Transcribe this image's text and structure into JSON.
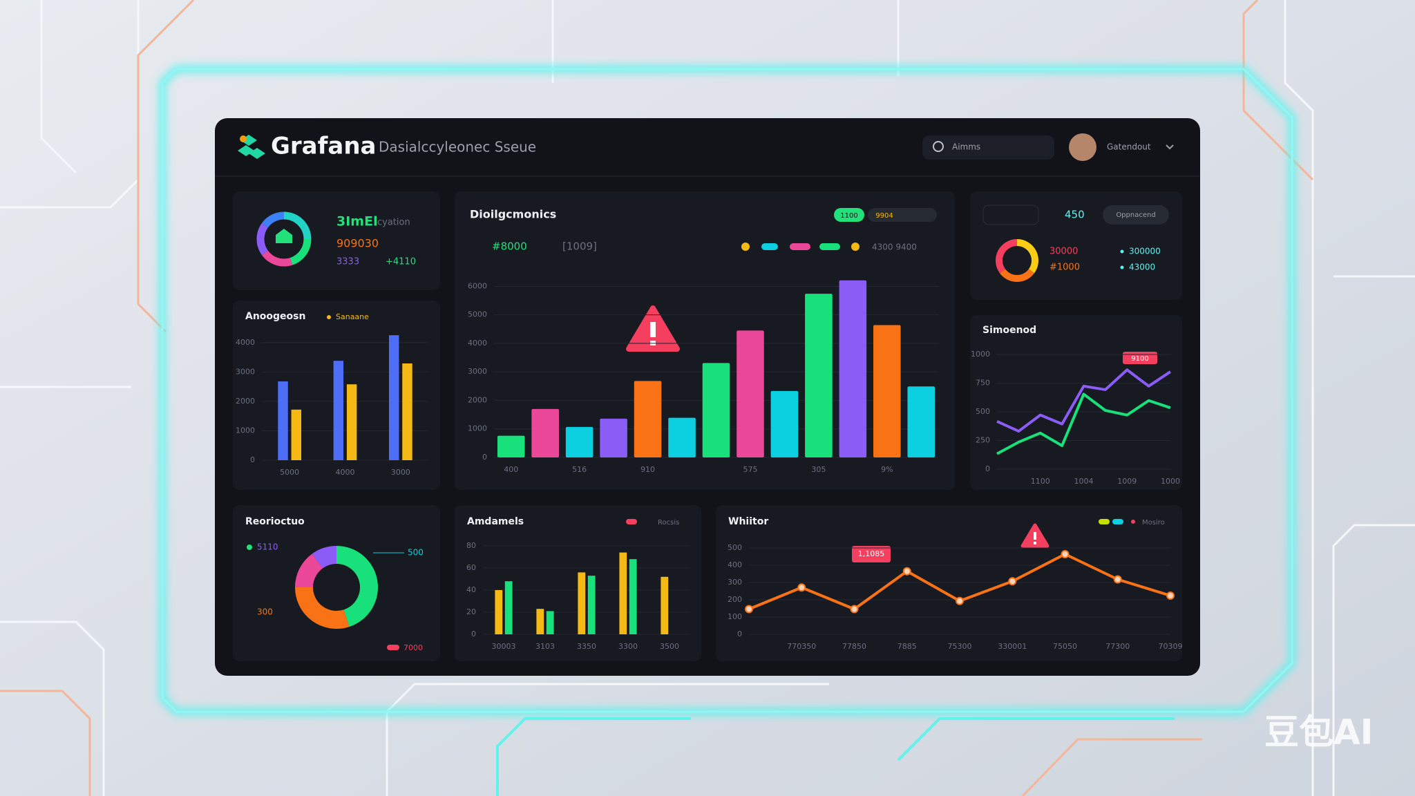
{
  "header": {
    "brand": "Grafana",
    "subtitle": "Dasialccyleonec Sseue",
    "search": "Aimms",
    "user": "Gatendout"
  },
  "watermark": "豆包AI",
  "panels": [
    {
      "title": "3ImEl",
      "subtitle": "cyation",
      "value": "909030",
      "foot": "3333",
      "delta": "+4110",
      "chart": {
        "type": "donut",
        "values": [
          25,
          20,
          20,
          20,
          15
        ],
        "colors": [
          "#22d3c5",
          "#18e07a",
          "#ec4899",
          "#8b5cf6",
          "#3b82f6"
        ]
      }
    },
    {
      "title": "Anoogeosn",
      "legend": "Sanaane",
      "chart": {
        "type": "bar",
        "categories": [
          "5000",
          "4000",
          "3000"
        ],
        "series": [
          {
            "color": "#4f6ef7",
            "values": [
              2680,
              3380,
              4250
            ]
          },
          {
            "color": "#f5b916",
            "values": [
              1720,
              2580,
              3290
            ]
          }
        ],
        "ylim": [
          0,
          4300
        ],
        "yticks": [
          0,
          1000,
          2000,
          3000,
          4000
        ]
      }
    },
    {
      "title": "Dioilgcmonics",
      "stats": [
        "#8000",
        "[1009]"
      ],
      "chips": [
        "1100",
        "9904"
      ],
      "legend": "4300  9400",
      "chart": {
        "type": "bar",
        "categories": [
          "400",
          null,
          "516",
          null,
          "910",
          null,
          null,
          "575",
          null,
          "305",
          null,
          "9%",
          null
        ],
        "values": [
          760,
          1700,
          1070,
          1360,
          2680,
          1390,
          3310,
          4450,
          2330,
          5740,
          6210,
          4640,
          2490
        ],
        "colors": [
          "#18e07a",
          "#ec4899",
          "#0ccfe0",
          "#8b5cf6",
          "#f97316",
          "#0ccfe0",
          "#18e07a",
          "#ec4899",
          "#0ccfe0",
          "#18e07a",
          "#8b5cf6",
          "#f97316",
          "#0ccfe0"
        ],
        "ylim": [
          0,
          6300
        ],
        "yticks": [
          0,
          1000,
          2000,
          3000,
          4000,
          5000,
          6000
        ]
      }
    },
    {
      "badge": "450",
      "chip": "Oppnacend",
      "lines": [
        "30000",
        "#1000"
      ],
      "legend": [
        "300000",
        "43000"
      ],
      "chart": {
        "type": "donut",
        "values": [
          35,
          30,
          35
        ],
        "colors": [
          "#facc15",
          "#f97316",
          "#f43f5e"
        ]
      }
    },
    {
      "title": "Simoenod",
      "annotation": "9100",
      "chart": {
        "type": "line",
        "categories": [
          null,
          null,
          "1100",
          null,
          "1004",
          null,
          "1009",
          null,
          "1000"
        ],
        "series": [
          {
            "color": "#8b5cf6",
            "values": [
              417,
              331,
              472,
              394,
              724,
              693,
              866,
              724,
              850
            ]
          },
          {
            "color": "#18e07a",
            "values": [
              134,
              236,
              315,
              205,
              654,
              512,
              472,
              598,
              535
            ]
          }
        ],
        "ylim": [
          0,
          1000
        ],
        "yticks": [
          0,
          250,
          500,
          750,
          1000
        ]
      }
    },
    {
      "title": "Reorioctuo",
      "labels": [
        "5110",
        "300",
        "500",
        "7000"
      ],
      "chart": {
        "type": "donut",
        "values": [
          45,
          30,
          15,
          10
        ],
        "colors": [
          "#18e07a",
          "#f97316",
          "#ec4899",
          "#8b5cf6"
        ]
      }
    },
    {
      "title": "Amdamels",
      "legend": "Rocsis",
      "chart": {
        "type": "bar",
        "categories": [
          "30003",
          "3103",
          "3350",
          "3300",
          "3500"
        ],
        "series": [
          {
            "color": "#f5b916",
            "values": [
              40,
              23,
              56,
              74,
              52
            ]
          },
          {
            "color": "#18e07a",
            "values": [
              48,
              21,
              53,
              68,
              null
            ]
          }
        ],
        "ylim": [
          0,
          80
        ],
        "yticks": [
          0,
          20,
          40,
          60,
          80
        ]
      }
    },
    {
      "title": "Whiitor",
      "legend": "Mosiro",
      "annotation": "1,1085",
      "chart": {
        "type": "line",
        "markers": true,
        "categories": [
          null,
          "770350",
          "77850",
          "7885",
          "75300",
          "330001",
          "75050",
          "77300",
          "70309"
        ],
        "series": [
          {
            "color": "#f97316",
            "values": [
              146,
              271,
              146,
              365,
              193,
              307,
              464,
              318,
              224
            ]
          }
        ],
        "ylim": [
          0,
          500
        ],
        "yticks": [
          0,
          100,
          200,
          300,
          400,
          500
        ]
      }
    }
  ]
}
